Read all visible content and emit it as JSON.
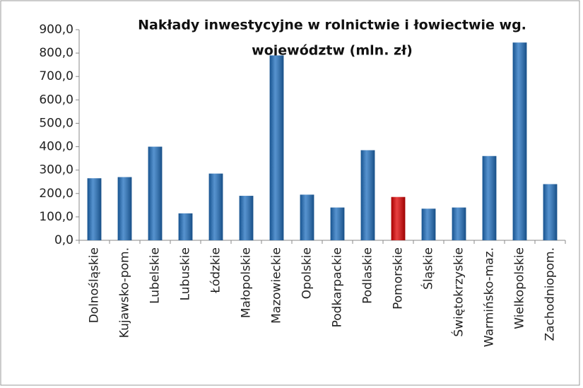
{
  "chart_data": {
    "type": "bar",
    "title": [
      "Nakłady inwestycyjne w rolnictwie i łowiectwie wg.",
      "województw (mln. zł)"
    ],
    "categories": [
      "Dolnośląskie",
      "Kujawsko-pom.",
      "Lubelskie",
      "Lubuskie",
      "Łódzkie",
      "Małopolskie",
      "Mazowieckie",
      "Opolskie",
      "Podkarpackie",
      "Podlaskie",
      "Pomorskie",
      "Śląskie",
      "Świętokrzyskie",
      "Warmińsko-maz.",
      "Wielkopolskie",
      "Zachodniopom."
    ],
    "values": [
      265,
      270,
      400,
      115,
      285,
      190,
      790,
      195,
      140,
      385,
      185,
      135,
      140,
      360,
      845,
      240
    ],
    "colors": [
      "#1f6fbf",
      "#1f6fbf",
      "#1f6fbf",
      "#1f6fbf",
      "#1f6fbf",
      "#1f6fbf",
      "#1f6fbf",
      "#1f6fbf",
      "#1f6fbf",
      "#1f6fbf",
      "#e00000",
      "#1f6fbf",
      "#1f6fbf",
      "#1f6fbf",
      "#1f6fbf",
      "#1f6fbf"
    ],
    "ylim": [
      0,
      900
    ],
    "yticks": [
      {
        "value": 0,
        "label": "0,0"
      },
      {
        "value": 100,
        "label": "100,0"
      },
      {
        "value": 200,
        "label": "200,0"
      },
      {
        "value": 300,
        "label": "300,0"
      },
      {
        "value": 400,
        "label": "400,0"
      },
      {
        "value": 500,
        "label": "500,0"
      },
      {
        "value": 600,
        "label": "600,0"
      },
      {
        "value": 700,
        "label": "700,0"
      },
      {
        "value": 800,
        "label": "800,0"
      },
      {
        "value": 900,
        "label": "900,0"
      }
    ],
    "grid": false
  }
}
